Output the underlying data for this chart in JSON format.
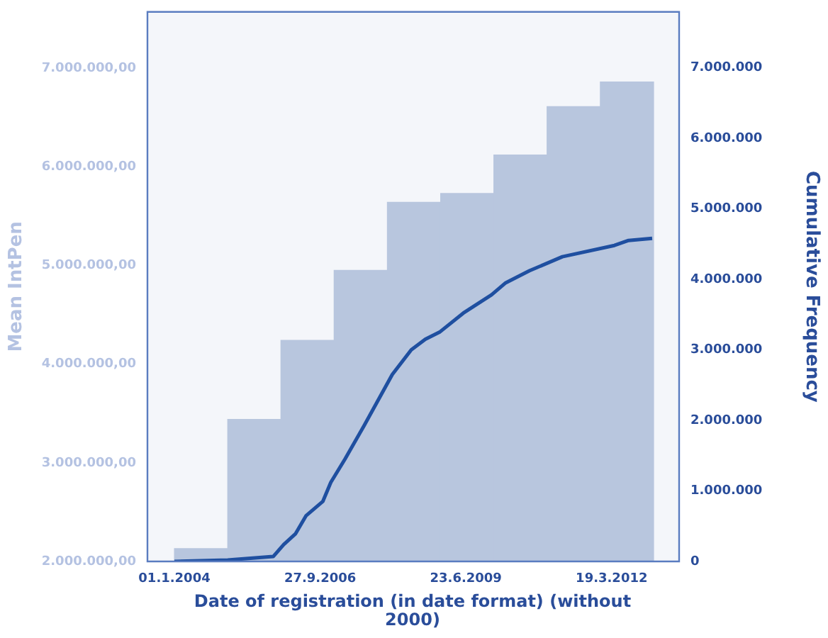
{
  "chart_data": {
    "type": "histogram",
    "xlabel": "Date of registration (in date format) (without 2000)",
    "ylabel": "Mean IntPen",
    "y2label": "Cumulative Frequency",
    "xlim": [
      "2003-06-30",
      "2013-06-25"
    ],
    "xticks": [
      {
        "value": "2004-01-01",
        "label": "01.1.2004"
      },
      {
        "value": "2006-09-27",
        "label": "27.9.2006"
      },
      {
        "value": "2009-06-23",
        "label": "23.6.2009"
      },
      {
        "value": "2012-03-19",
        "label": "19.3.2012"
      }
    ],
    "ylim": [
      2000000,
      7570000
    ],
    "yticks": [
      {
        "value": 2000000,
        "label": "2.000.000,00"
      },
      {
        "value": 3000000,
        "label": "3.000.000,00"
      },
      {
        "value": 4000000,
        "label": "4.000.000,00"
      },
      {
        "value": 5000000,
        "label": "5.000.000,00"
      },
      {
        "value": 6000000,
        "label": "6.000.000,00"
      },
      {
        "value": 7000000,
        "label": "7.000.000,00"
      }
    ],
    "y2lim": [
      0,
      7790000
    ],
    "y2ticks": [
      0,
      {
        "value": 1000000,
        "label": "1.000.000"
      },
      {
        "value": 2000000,
        "label": "2.000.000"
      },
      {
        "value": 3000000,
        "label": "3.000.000"
      },
      {
        "value": 4000000,
        "label": "4.000.000"
      },
      {
        "value": 5000000,
        "label": "5.000.000"
      },
      {
        "value": 6000000,
        "label": "6.000.000"
      },
      {
        "value": 7000000,
        "label": "7.000.000"
      }
    ],
    "grid": false,
    "legend": false,
    "series": [
      {
        "color": "#b8c6de",
        "bins": [
          "2004-01-01",
          "2005-01-01",
          "2006-01-01",
          "2007-01-01",
          "2008-01-01",
          "2009-01-01",
          "2010-01-01",
          "2011-01-01",
          "2012-01-01",
          "2013-01-01"
        ],
        "values": [
          2130000,
          3440000,
          4240000,
          4950000,
          5640000,
          5730000,
          6120000,
          6610000,
          6860000
        ]
      },
      {
        "type": "line",
        "axis": "y2",
        "color": "#1f4fa0",
        "x": [
          "2004-01-01",
          "2005-01-01",
          "2005-11-09",
          "2006-01-20",
          "2006-04-10",
          "2006-06-23",
          "2006-10-15",
          "2006-12-09",
          "2007-03-16",
          "2007-07-24",
          "2008-02-04",
          "2008-06-13",
          "2008-09-18",
          "2008-12-24",
          "2009-06-05",
          "2009-12-16",
          "2010-03-23",
          "2010-09-01",
          "2011-04-16",
          "2012-04-07",
          "2012-07-13",
          "2012-12-22"
        ],
        "values": [
          0,
          20000,
          70000,
          240000,
          390000,
          650000,
          850000,
          1120000,
          1450000,
          1920000,
          2650000,
          3000000,
          3150000,
          3250000,
          3520000,
          3780000,
          3950000,
          4120000,
          4320000,
          4480000,
          4550000,
          4580000
        ]
      }
    ]
  }
}
